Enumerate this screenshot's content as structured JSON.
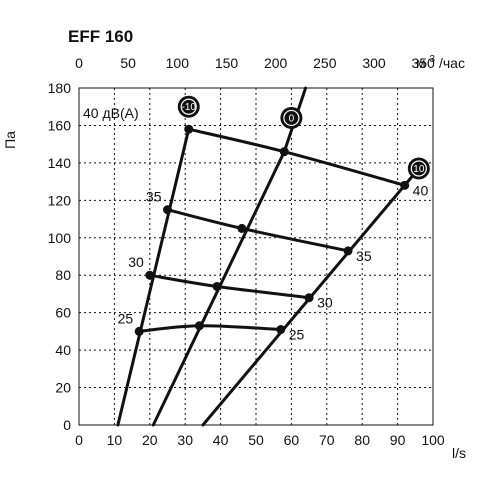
{
  "chart_data": {
    "type": "line",
    "title": "EFF 160",
    "ylabel": "Па",
    "x_bottom_unit": "l/s",
    "x_top_unit_base": "м",
    "x_top_unit_sup": "3",
    "x_top_unit_tail": "/час",
    "noise_unit_label": "40 дВ(А)",
    "xlim": [
      0,
      100
    ],
    "ylim": [
      0,
      180
    ],
    "x_top_lim": [
      0,
      360
    ],
    "x_ticks": [
      0,
      10,
      20,
      30,
      40,
      50,
      60,
      70,
      80,
      90,
      100
    ],
    "x_tick_labels": [
      "0",
      "10",
      "20",
      "30",
      "40",
      "50",
      "60",
      "70",
      "80",
      "90",
      "100"
    ],
    "y_ticks": [
      0,
      20,
      40,
      60,
      80,
      100,
      120,
      140,
      160,
      180
    ],
    "y_tick_labels": [
      "0",
      "20",
      "40",
      "60",
      "80",
      "100",
      "120",
      "140",
      "160",
      "180"
    ],
    "x_top_ticks": [
      0,
      50,
      100,
      150,
      200,
      250,
      300,
      350
    ],
    "x_top_tick_labels": [
      "0",
      "50",
      "100",
      "150",
      "200",
      "250",
      "300",
      "350"
    ],
    "grid": true,
    "setting_curves": [
      {
        "name": "-10",
        "points": [
          [
            11,
            0
          ],
          [
            31,
            158
          ]
        ]
      },
      {
        "name": "0",
        "points": [
          [
            21,
            0
          ],
          [
            58,
            146
          ],
          [
            64,
            180
          ]
        ]
      },
      {
        "name": "10",
        "points": [
          [
            35,
            0
          ],
          [
            96,
            137
          ]
        ]
      }
    ],
    "noise_curves": [
      {
        "name": "40",
        "label_pos": "right",
        "points": [
          [
            31,
            158
          ],
          [
            58,
            146
          ],
          [
            92,
            128
          ]
        ]
      },
      {
        "name": "35",
        "label_pos": "both",
        "points": [
          [
            25,
            115
          ],
          [
            46,
            105
          ],
          [
            76,
            93
          ]
        ]
      },
      {
        "name": "30",
        "label_pos": "both",
        "points": [
          [
            20,
            80
          ],
          [
            39,
            74
          ],
          [
            65,
            68
          ]
        ]
      },
      {
        "name": "25",
        "label_pos": "both",
        "points": [
          [
            17,
            50
          ],
          [
            34,
            53
          ],
          [
            57,
            51
          ]
        ]
      }
    ],
    "badges": [
      {
        "name": "-10",
        "x": 31,
        "y": 170
      },
      {
        "name": "0",
        "x": 60,
        "y": 164
      },
      {
        "name": "10",
        "x": 96,
        "y": 137
      }
    ]
  }
}
